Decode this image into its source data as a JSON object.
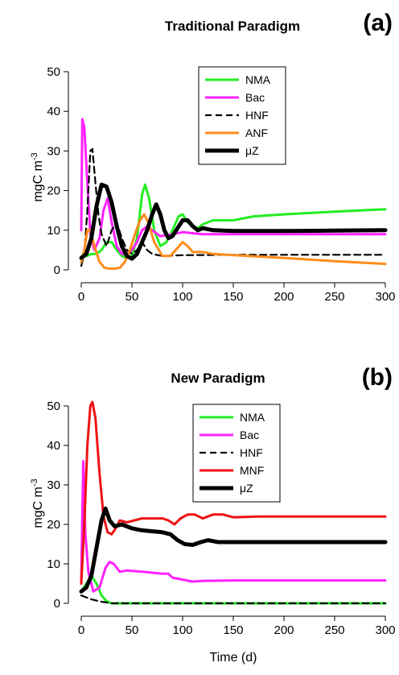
{
  "chart_data": [
    {
      "type": "line",
      "title": "Traditional Paradigm",
      "tag": "(a)",
      "xlabel": "",
      "ylabel": "mgC m",
      "ylabel_sup": "-3",
      "xlim": [
        0,
        300
      ],
      "ylim": [
        0,
        50
      ],
      "xticks": [
        "0",
        "50",
        "100",
        "150",
        "200",
        "250",
        "300"
      ],
      "yticks": [
        "0",
        "10",
        "20",
        "30",
        "40",
        "50"
      ],
      "legend_position": "top-center",
      "grid": false,
      "series": [
        {
          "name": "NMA",
          "color": "#22ee22",
          "dash": "",
          "width": 3,
          "points": [
            [
              0,
              3
            ],
            [
              5,
              3.5
            ],
            [
              10,
              4
            ],
            [
              15,
              4
            ],
            [
              20,
              5
            ],
            [
              25,
              7
            ],
            [
              30,
              7
            ],
            [
              35,
              5
            ],
            [
              40,
              3.5
            ],
            [
              45,
              3
            ],
            [
              50,
              3.5
            ],
            [
              55,
              8
            ],
            [
              60,
              19
            ],
            [
              63,
              21.5
            ],
            [
              67,
              18
            ],
            [
              72,
              10
            ],
            [
              78,
              6
            ],
            [
              84,
              7
            ],
            [
              90,
              10
            ],
            [
              96,
              13.5
            ],
            [
              100,
              14
            ],
            [
              105,
              12
            ],
            [
              110,
              11
            ],
            [
              115,
              10.5
            ],
            [
              120,
              11.5
            ],
            [
              130,
              12.5
            ],
            [
              140,
              12.5
            ],
            [
              150,
              12.5
            ],
            [
              170,
              13.5
            ],
            [
              200,
              14
            ],
            [
              250,
              14.7
            ],
            [
              300,
              15.3
            ]
          ]
        },
        {
          "name": "Bac",
          "color": "#ff22ff",
          "dash": "",
          "width": 3,
          "points": [
            [
              0,
              10
            ],
            [
              1,
              38
            ],
            [
              3,
              36
            ],
            [
              6,
              22
            ],
            [
              9,
              9
            ],
            [
              13,
              5
            ],
            [
              18,
              8
            ],
            [
              22,
              15
            ],
            [
              26,
              18
            ],
            [
              30,
              12
            ],
            [
              35,
              6
            ],
            [
              40,
              4
            ],
            [
              45,
              4
            ],
            [
              50,
              5
            ],
            [
              55,
              7
            ],
            [
              60,
              10
            ],
            [
              65,
              11
            ],
            [
              70,
              10
            ],
            [
              78,
              8.5
            ],
            [
              90,
              9
            ],
            [
              100,
              9.5
            ],
            [
              120,
              9
            ],
            [
              150,
              9
            ],
            [
              200,
              9
            ],
            [
              250,
              9
            ],
            [
              300,
              9
            ]
          ]
        },
        {
          "name": "HNF",
          "color": "#000000",
          "dash": "8,5",
          "width": 2.2,
          "points": [
            [
              0,
              1
            ],
            [
              3,
              4
            ],
            [
              6,
              15
            ],
            [
              9,
              30
            ],
            [
              11,
              30.5
            ],
            [
              14,
              22
            ],
            [
              17,
              14
            ],
            [
              20,
              9
            ],
            [
              25,
              6
            ],
            [
              30,
              10
            ],
            [
              35,
              12
            ],
            [
              40,
              8
            ],
            [
              45,
              5
            ],
            [
              50,
              4
            ],
            [
              55,
              5
            ],
            [
              60,
              7
            ],
            [
              65,
              5
            ],
            [
              70,
              4
            ],
            [
              80,
              3.5
            ],
            [
              100,
              3.7
            ],
            [
              150,
              3.8
            ],
            [
              200,
              3.8
            ],
            [
              300,
              3.8
            ]
          ]
        },
        {
          "name": "ANF",
          "color": "#ff8c1a",
          "dash": "",
          "width": 3,
          "points": [
            [
              0,
              2
            ],
            [
              3,
              5
            ],
            [
              6,
              10
            ],
            [
              9,
              10
            ],
            [
              13,
              6
            ],
            [
              18,
              2
            ],
            [
              23,
              0.5
            ],
            [
              28,
              0.3
            ],
            [
              33,
              0.3
            ],
            [
              38,
              0.5
            ],
            [
              43,
              2
            ],
            [
              48,
              5
            ],
            [
              53,
              9
            ],
            [
              58,
              12.5
            ],
            [
              62,
              14
            ],
            [
              66,
              12
            ],
            [
              72,
              7
            ],
            [
              80,
              3.5
            ],
            [
              88,
              3.5
            ],
            [
              95,
              5.5
            ],
            [
              100,
              7
            ],
            [
              105,
              6
            ],
            [
              110,
              4.5
            ],
            [
              120,
              4.5
            ],
            [
              130,
              4
            ],
            [
              150,
              3.7
            ],
            [
              200,
              3
            ],
            [
              250,
              2.2
            ],
            [
              300,
              1.5
            ]
          ]
        },
        {
          "name": "μZ",
          "color": "#000000",
          "dash": "",
          "width": 5,
          "points": [
            [
              0,
              3
            ],
            [
              5,
              4
            ],
            [
              10,
              8
            ],
            [
              15,
              16
            ],
            [
              20,
              21.5
            ],
            [
              25,
              21
            ],
            [
              30,
              17
            ],
            [
              35,
              11
            ],
            [
              40,
              6
            ],
            [
              45,
              3.5
            ],
            [
              50,
              2.8
            ],
            [
              55,
              4
            ],
            [
              60,
              7
            ],
            [
              65,
              10
            ],
            [
              70,
              14
            ],
            [
              74,
              16.5
            ],
            [
              78,
              14
            ],
            [
              82,
              10
            ],
            [
              86,
              8
            ],
            [
              90,
              8.5
            ],
            [
              95,
              10.5
            ],
            [
              100,
              12.5
            ],
            [
              105,
              12.5
            ],
            [
              110,
              11
            ],
            [
              115,
              10
            ],
            [
              120,
              10.5
            ],
            [
              130,
              10
            ],
            [
              150,
              9.8
            ],
            [
              200,
              9.8
            ],
            [
              250,
              9.9
            ],
            [
              300,
              10
            ]
          ]
        }
      ]
    },
    {
      "type": "line",
      "title": "New Paradigm",
      "tag": "(b)",
      "xlabel": "Time (d)",
      "ylabel": "mgC m",
      "ylabel_sup": "-3",
      "xlim": [
        0,
        300
      ],
      "ylim": [
        0,
        50
      ],
      "xticks": [
        "0",
        "50",
        "100",
        "150",
        "200",
        "250",
        "300"
      ],
      "yticks": [
        "0",
        "10",
        "20",
        "30",
        "40",
        "50"
      ],
      "legend_position": "top-center",
      "grid": false,
      "series": [
        {
          "name": "NMA",
          "color": "#22ee22",
          "dash": "",
          "width": 3,
          "points": [
            [
              0,
              3
            ],
            [
              5,
              5
            ],
            [
              10,
              7
            ],
            [
              15,
              5
            ],
            [
              20,
              2
            ],
            [
              25,
              0.5
            ],
            [
              30,
              0
            ],
            [
              50,
              0
            ],
            [
              100,
              0
            ],
            [
              200,
              0
            ],
            [
              300,
              0
            ]
          ]
        },
        {
          "name": "Bac",
          "color": "#ff22ff",
          "dash": "",
          "width": 3,
          "points": [
            [
              0,
              6
            ],
            [
              2,
              36
            ],
            [
              4,
              18
            ],
            [
              7,
              8
            ],
            [
              12,
              3
            ],
            [
              18,
              4
            ],
            [
              24,
              9
            ],
            [
              28,
              10.5
            ],
            [
              32,
              10
            ],
            [
              38,
              8
            ],
            [
              45,
              8.3
            ],
            [
              60,
              8
            ],
            [
              80,
              7.5
            ],
            [
              86,
              7.5
            ],
            [
              90,
              6.5
            ],
            [
              100,
              6
            ],
            [
              110,
              5.5
            ],
            [
              120,
              5.7
            ],
            [
              150,
              5.8
            ],
            [
              200,
              5.8
            ],
            [
              250,
              5.8
            ],
            [
              300,
              5.8
            ]
          ]
        },
        {
          "name": "HNF",
          "color": "#000000",
          "dash": "8,5",
          "width": 2.2,
          "points": [
            [
              0,
              2
            ],
            [
              10,
              1
            ],
            [
              20,
              0.4
            ],
            [
              30,
              0
            ],
            [
              50,
              0
            ],
            [
              100,
              0
            ],
            [
              200,
              0
            ],
            [
              300,
              0
            ]
          ]
        },
        {
          "name": "MNF",
          "color": "#ee1111",
          "dash": "",
          "width": 3,
          "points": [
            [
              0,
              5
            ],
            [
              3,
              20
            ],
            [
              6,
              40
            ],
            [
              9,
              50
            ],
            [
              11,
              51
            ],
            [
              14,
              47
            ],
            [
              18,
              33
            ],
            [
              22,
              22
            ],
            [
              26,
              18
            ],
            [
              30,
              17.5
            ],
            [
              34,
              19
            ],
            [
              38,
              21
            ],
            [
              45,
              20.5
            ],
            [
              60,
              21.5
            ],
            [
              80,
              21.5
            ],
            [
              86,
              21
            ],
            [
              92,
              20
            ],
            [
              98,
              21.5
            ],
            [
              105,
              22.5
            ],
            [
              112,
              22.5
            ],
            [
              120,
              21.5
            ],
            [
              130,
              22.5
            ],
            [
              140,
              22.5
            ],
            [
              150,
              21.8
            ],
            [
              175,
              22
            ],
            [
              200,
              22
            ],
            [
              250,
              22
            ],
            [
              300,
              22
            ]
          ]
        },
        {
          "name": "μZ",
          "color": "#000000",
          "dash": "",
          "width": 5,
          "points": [
            [
              0,
              3
            ],
            [
              5,
              4
            ],
            [
              10,
              7
            ],
            [
              15,
              14
            ],
            [
              20,
              21
            ],
            [
              24,
              24
            ],
            [
              28,
              21
            ],
            [
              33,
              19.5
            ],
            [
              40,
              20
            ],
            [
              50,
              19
            ],
            [
              60,
              18.5
            ],
            [
              80,
              18
            ],
            [
              88,
              17.5
            ],
            [
              95,
              16
            ],
            [
              102,
              15
            ],
            [
              110,
              14.8
            ],
            [
              118,
              15.5
            ],
            [
              125,
              16
            ],
            [
              135,
              15.5
            ],
            [
              150,
              15.5
            ],
            [
              200,
              15.5
            ],
            [
              250,
              15.5
            ],
            [
              300,
              15.5
            ]
          ]
        }
      ]
    }
  ]
}
